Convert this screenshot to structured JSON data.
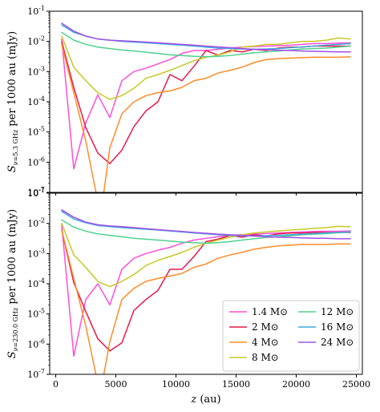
{
  "chart_data": [
    {
      "type": "line",
      "panel": "top",
      "ylabel": "S_{ν=5.3 GHz} per 1000 au (mJy)",
      "ylabel_main": "S",
      "ylabel_sub": "ν=5.3 GHz",
      "ylabel_rest": " per 1000 au (mJy)",
      "xlabel": "",
      "xlim": [
        -500,
        25500
      ],
      "ylim": [
        1e-07,
        0.1
      ],
      "yscale": "log",
      "x_ticks": [
        0,
        5000,
        10000,
        15000,
        20000,
        25000
      ],
      "y_ticks": [
        -7,
        -6,
        -5,
        -4,
        -3,
        -2,
        -1
      ],
      "series": [
        {
          "name": "1.4 M⊙",
          "color": "#ff4fd8",
          "x": [
            500,
            1500,
            2500,
            3500,
            4500,
            5500,
            6500,
            7500,
            8500,
            9500,
            10500,
            11500,
            12500,
            13500,
            14500,
            15500,
            16500,
            17500,
            18500,
            19500,
            20500,
            21500,
            22500,
            23500,
            24500
          ],
          "y": [
            0.012,
            6e-07,
            2e-05,
            0.00017,
            3e-05,
            0.0005,
            0.001,
            0.0013,
            0.0018,
            0.0025,
            0.004,
            0.005,
            0.005,
            0.0055,
            0.006,
            0.0065,
            0.0068,
            0.007,
            0.0072,
            0.0075,
            0.008,
            0.0085,
            0.0085,
            0.0088,
            0.009
          ]
        },
        {
          "name": "2 M⊙",
          "color": "#e6194b",
          "x": [
            500,
            1500,
            2500,
            3500,
            4500,
            5500,
            6500,
            7500,
            8500,
            9500,
            10500,
            11500,
            12500,
            13500,
            14500,
            15500,
            16500,
            17500,
            18500,
            19500,
            20500,
            21500,
            22500,
            23500,
            24500
          ],
          "y": [
            0.01,
            0.0003,
            1.4e-05,
            2e-06,
            9e-07,
            2.5e-06,
            1.5e-05,
            5e-05,
            0.0001,
            0.0008,
            0.0005,
            0.0015,
            0.005,
            0.0035,
            0.005,
            0.0045,
            0.0055,
            0.005,
            0.006,
            0.0065,
            0.0065,
            0.007,
            0.007,
            0.007,
            0.007
          ]
        },
        {
          "name": "4 M⊙",
          "color": "#ff8c28",
          "x": [
            500,
            1500,
            2500,
            3500,
            4000,
            4500,
            5500,
            6500,
            7500,
            8500,
            9500,
            10500,
            11500,
            12500,
            13500,
            14500,
            15500,
            16500,
            17500,
            18500,
            19500,
            20500,
            21500,
            22500,
            23500,
            24500
          ],
          "y": [
            0.008,
            0.0002,
            5e-06,
            5e-08,
            1e-07,
            3e-06,
            4e-05,
            0.0001,
            0.00016,
            0.0002,
            0.00023,
            0.0003,
            0.0005,
            0.0006,
            0.0009,
            0.0011,
            0.0014,
            0.002,
            0.0025,
            0.0027,
            0.0028,
            0.0029,
            0.003,
            0.003,
            0.003,
            0.0031
          ]
        },
        {
          "name": "8 M⊙",
          "color": "#c8c828",
          "x": [
            500,
            1500,
            2500,
            3500,
            4500,
            5500,
            6500,
            7500,
            8500,
            9500,
            10500,
            11500,
            12500,
            13500,
            14500,
            15500,
            16500,
            17500,
            18500,
            19500,
            20500,
            21500,
            22500,
            23500,
            24500
          ],
          "y": [
            0.015,
            0.0014,
            0.0005,
            0.0002,
            0.00012,
            0.00016,
            0.00028,
            0.0006,
            0.0008,
            0.0011,
            0.0016,
            0.0023,
            0.003,
            0.0035,
            0.0045,
            0.0065,
            0.007,
            0.008,
            0.008,
            0.009,
            0.01,
            0.01,
            0.011,
            0.013,
            0.012
          ]
        },
        {
          "name": "12 M⊙",
          "color": "#4fd28c",
          "x": [
            500,
            1500,
            2500,
            3500,
            4500,
            5500,
            6500,
            7500,
            8500,
            9500,
            10500,
            11500,
            12500,
            13500,
            14500,
            15500,
            16500,
            17500,
            18500,
            19500,
            20500,
            21500,
            22500,
            23500,
            24500
          ],
          "y": [
            0.02,
            0.011,
            0.008,
            0.0065,
            0.0058,
            0.0052,
            0.0048,
            0.0044,
            0.004,
            0.0036,
            0.0034,
            0.0032,
            0.0031,
            0.0032,
            0.0034,
            0.0038,
            0.0042,
            0.0045,
            0.0048,
            0.0052,
            0.0056,
            0.0058,
            0.006,
            0.0065,
            0.007
          ]
        },
        {
          "name": "16 M⊙",
          "color": "#3caadc",
          "x": [
            500,
            1500,
            2500,
            3500,
            4500,
            5500,
            6500,
            7500,
            8500,
            9500,
            10500,
            11500,
            12500,
            13500,
            14500,
            15500,
            16500,
            17500,
            18500,
            19500,
            20500,
            21500,
            22500,
            23500,
            24500
          ],
          "y": [
            0.035,
            0.02,
            0.015,
            0.012,
            0.011,
            0.01,
            0.0095,
            0.009,
            0.0085,
            0.008,
            0.0075,
            0.007,
            0.0065,
            0.006,
            0.0058,
            0.0056,
            0.0055,
            0.0056,
            0.0058,
            0.0062,
            0.0066,
            0.007,
            0.0075,
            0.008,
            0.0085
          ]
        },
        {
          "name": "24 M⊙",
          "color": "#a050e6",
          "x": [
            500,
            1500,
            2500,
            3500,
            4500,
            5500,
            6500,
            7500,
            8500,
            9500,
            10500,
            11500,
            12500,
            13500,
            14500,
            15500,
            16500,
            17500,
            18500,
            19500,
            20500,
            21500,
            22500,
            23500,
            24500
          ],
          "y": [
            0.04,
            0.022,
            0.015,
            0.012,
            0.011,
            0.0105,
            0.01,
            0.0095,
            0.009,
            0.0085,
            0.008,
            0.0075,
            0.007,
            0.0066,
            0.0062,
            0.0058,
            0.0055,
            0.0053,
            0.0051,
            0.005,
            0.0048,
            0.0047,
            0.0046,
            0.0045,
            0.0045
          ]
        }
      ]
    },
    {
      "type": "line",
      "panel": "bottom",
      "ylabel": "S_{ν=230.0 GHz} per 1000 au (mJy)",
      "ylabel_main": "S",
      "ylabel_sub": "ν=230.0 GHz",
      "ylabel_rest": " per 1000 au (mJy)",
      "xlabel": "z (au)",
      "xlabel_var": "z",
      "xlabel_unit": " (au)",
      "xlim": [
        -500,
        25500
      ],
      "ylim": [
        1e-07,
        0.1
      ],
      "yscale": "log",
      "x_ticks": [
        0,
        5000,
        10000,
        15000,
        20000,
        25000
      ],
      "x_ticklabels": [
        "0",
        "5000",
        "10000",
        "15000",
        "20000",
        "25000"
      ],
      "y_ticks": [
        -7,
        -6,
        -5,
        -4,
        -3,
        -2,
        -1
      ],
      "legend": {
        "placement": "lower-right",
        "ncol": 2
      },
      "series": [
        {
          "name": "1.4 M⊙",
          "color": "#ff4fd8",
          "x": [
            500,
            1500,
            2500,
            3500,
            4500,
            5500,
            6500,
            7500,
            8500,
            9500,
            10500,
            11500,
            12500,
            13500,
            14500,
            15500,
            16500,
            17500,
            18500,
            19500,
            20500,
            21500,
            22500,
            23500,
            24500
          ],
          "y": [
            0.009,
            4e-07,
            3e-05,
            0.0001,
            2e-05,
            0.0003,
            0.0007,
            0.001,
            0.0013,
            0.0016,
            0.0022,
            0.0028,
            0.0032,
            0.0036,
            0.004,
            0.0042,
            0.0044,
            0.0046,
            0.0048,
            0.005,
            0.0052,
            0.0054,
            0.0055,
            0.0055,
            0.0056
          ]
        },
        {
          "name": "2 M⊙",
          "color": "#e6194b",
          "x": [
            500,
            1500,
            2500,
            3500,
            4500,
            5500,
            6500,
            7500,
            8500,
            9500,
            10500,
            11500,
            12500,
            13500,
            14500,
            15500,
            16500,
            17500,
            18500,
            19500,
            20500,
            21500,
            22500,
            23500,
            24500
          ],
          "y": [
            0.006,
            0.00011,
            1.2e-05,
            1.5e-06,
            6e-07,
            1.1e-06,
            1.3e-05,
            3e-05,
            6e-05,
            0.0003,
            0.0003,
            0.0008,
            0.0025,
            0.003,
            0.004,
            0.0035,
            0.0042,
            0.0038,
            0.0045,
            0.0048,
            0.0048,
            0.005,
            0.005,
            0.005,
            0.005
          ]
        },
        {
          "name": "4 M⊙",
          "color": "#ff8c28",
          "x": [
            500,
            1500,
            2500,
            3500,
            4000,
            4500,
            5500,
            6500,
            7500,
            8500,
            9500,
            10500,
            11500,
            12500,
            13500,
            14500,
            15500,
            16500,
            17500,
            18500,
            19500,
            20500,
            21500,
            22500,
            23500,
            24500
          ],
          "y": [
            0.006,
            0.00015,
            4e-06,
            5e-08,
            1e-07,
            1.2e-06,
            3e-05,
            7e-05,
            0.00012,
            0.00015,
            0.00018,
            0.00022,
            0.00035,
            0.00045,
            0.0007,
            0.0009,
            0.0011,
            0.0014,
            0.0016,
            0.0018,
            0.0019,
            0.002,
            0.002,
            0.002,
            0.0021,
            0.0021
          ]
        },
        {
          "name": "8 M⊙",
          "color": "#c8c828",
          "x": [
            500,
            1500,
            2500,
            3500,
            4500,
            5500,
            6500,
            7500,
            8500,
            9500,
            10500,
            11500,
            12500,
            13500,
            14500,
            15500,
            16500,
            17500,
            18500,
            19500,
            20500,
            21500,
            22500,
            23500,
            24500
          ],
          "y": [
            0.01,
            0.0009,
            0.00035,
            0.00012,
            8e-05,
            0.00012,
            0.0002,
            0.0004,
            0.0006,
            0.0008,
            0.0011,
            0.0016,
            0.0022,
            0.0028,
            0.0035,
            0.0042,
            0.0048,
            0.0052,
            0.0056,
            0.006,
            0.0064,
            0.0068,
            0.0072,
            0.008,
            0.0078
          ]
        },
        {
          "name": "12 M⊙",
          "color": "#4fd28c",
          "x": [
            500,
            1500,
            2500,
            3500,
            4500,
            5500,
            6500,
            7500,
            8500,
            9500,
            10500,
            11500,
            12500,
            13500,
            14500,
            15500,
            16500,
            17500,
            18500,
            19500,
            20500,
            21500,
            22500,
            23500,
            24500
          ],
          "y": [
            0.013,
            0.0075,
            0.0055,
            0.0045,
            0.004,
            0.0036,
            0.0032,
            0.003,
            0.0028,
            0.0026,
            0.0024,
            0.0023,
            0.0022,
            0.0023,
            0.0025,
            0.0028,
            0.0031,
            0.0034,
            0.0036,
            0.0039,
            0.0042,
            0.0044,
            0.0046,
            0.0049,
            0.0052
          ]
        },
        {
          "name": "16 M⊙",
          "color": "#3caadc",
          "x": [
            500,
            1500,
            2500,
            3500,
            4500,
            5500,
            6500,
            7500,
            8500,
            9500,
            10500,
            11500,
            12500,
            13500,
            14500,
            15500,
            16500,
            17500,
            18500,
            19500,
            20500,
            21500,
            22500,
            23500,
            24500
          ],
          "y": [
            0.025,
            0.014,
            0.0105,
            0.0085,
            0.0078,
            0.0072,
            0.0068,
            0.0064,
            0.006,
            0.0056,
            0.0052,
            0.0048,
            0.0045,
            0.0042,
            0.004,
            0.0039,
            0.0038,
            0.0039,
            0.004,
            0.0042,
            0.0044,
            0.0046,
            0.0048,
            0.005,
            0.0052
          ]
        },
        {
          "name": "24 M⊙",
          "color": "#a050e6",
          "x": [
            500,
            1500,
            2500,
            3500,
            4500,
            5500,
            6500,
            7500,
            8500,
            9500,
            10500,
            11500,
            12500,
            13500,
            14500,
            15500,
            16500,
            17500,
            18500,
            19500,
            20500,
            21500,
            22500,
            23500,
            24500
          ],
          "y": [
            0.028,
            0.016,
            0.011,
            0.009,
            0.0082,
            0.0078,
            0.0072,
            0.0067,
            0.0062,
            0.0058,
            0.0054,
            0.005,
            0.0047,
            0.0044,
            0.0042,
            0.004,
            0.0038,
            0.0036,
            0.0035,
            0.0034,
            0.0033,
            0.0032,
            0.0032,
            0.0031,
            0.0031
          ]
        }
      ]
    }
  ]
}
